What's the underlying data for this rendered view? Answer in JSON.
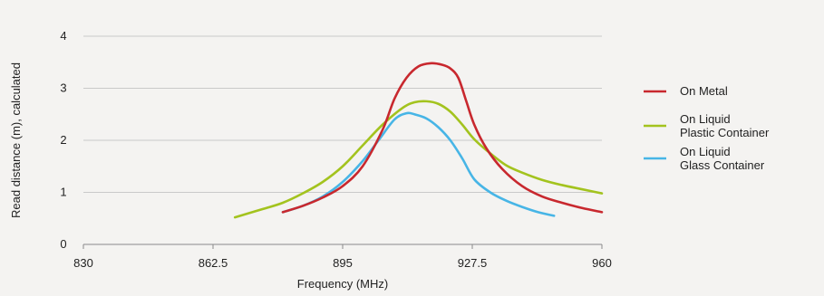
{
  "chart_data": {
    "type": "line",
    "title": "",
    "xlabel": "Frequency (MHz)",
    "ylabel": "Read distance (m), calculated",
    "xlim": [
      830,
      960
    ],
    "ylim": [
      0,
      4
    ],
    "xticks": [
      830,
      862.5,
      895,
      927.5,
      960
    ],
    "xtick_labels": [
      "830",
      "862.5",
      "895",
      "927.5",
      "960"
    ],
    "yticks": [
      0,
      1,
      2,
      3,
      4
    ],
    "ytick_labels": [
      "0",
      "1",
      "2",
      "3",
      "4"
    ],
    "grid": "horizontal",
    "legend_position": "right",
    "series": [
      {
        "name": "On Metal",
        "label_lines": [
          "On Metal"
        ],
        "color": "#c8282e",
        "points": [
          [
            880,
            0.62
          ],
          [
            885,
            0.74
          ],
          [
            890,
            0.9
          ],
          [
            895,
            1.12
          ],
          [
            900,
            1.5
          ],
          [
            905,
            2.2
          ],
          [
            908,
            2.8
          ],
          [
            911,
            3.2
          ],
          [
            914,
            3.42
          ],
          [
            917,
            3.48
          ],
          [
            920,
            3.45
          ],
          [
            922,
            3.38
          ],
          [
            924,
            3.2
          ],
          [
            926,
            2.75
          ],
          [
            928,
            2.3
          ],
          [
            931,
            1.85
          ],
          [
            935,
            1.45
          ],
          [
            940,
            1.12
          ],
          [
            945,
            0.92
          ],
          [
            950,
            0.8
          ],
          [
            955,
            0.7
          ],
          [
            960,
            0.62
          ]
        ]
      },
      {
        "name": "On Liquid Plastic Container",
        "label_lines": [
          "On Liquid",
          "Plastic Container"
        ],
        "color": "#a3c31e",
        "points": [
          [
            868,
            0.52
          ],
          [
            875,
            0.68
          ],
          [
            880,
            0.8
          ],
          [
            885,
            0.98
          ],
          [
            890,
            1.2
          ],
          [
            895,
            1.5
          ],
          [
            900,
            1.9
          ],
          [
            905,
            2.3
          ],
          [
            910,
            2.62
          ],
          [
            913,
            2.73
          ],
          [
            916,
            2.75
          ],
          [
            919,
            2.7
          ],
          [
            922,
            2.55
          ],
          [
            925,
            2.3
          ],
          [
            928,
            2.02
          ],
          [
            932,
            1.75
          ],
          [
            936,
            1.52
          ],
          [
            940,
            1.38
          ],
          [
            945,
            1.24
          ],
          [
            950,
            1.14
          ],
          [
            955,
            1.06
          ],
          [
            960,
            0.98
          ]
        ]
      },
      {
        "name": "On Liquid Glass Container",
        "label_lines": [
          "On Liquid",
          "Glass Container"
        ],
        "color": "#47b5e6",
        "points": [
          [
            880,
            0.62
          ],
          [
            885,
            0.74
          ],
          [
            890,
            0.92
          ],
          [
            895,
            1.2
          ],
          [
            900,
            1.6
          ],
          [
            904,
            2.0
          ],
          [
            908,
            2.4
          ],
          [
            911,
            2.52
          ],
          [
            913,
            2.5
          ],
          [
            916,
            2.42
          ],
          [
            919,
            2.25
          ],
          [
            922,
            2.0
          ],
          [
            925,
            1.65
          ],
          [
            928,
            1.25
          ],
          [
            932,
            1.0
          ],
          [
            936,
            0.84
          ],
          [
            940,
            0.72
          ],
          [
            944,
            0.62
          ],
          [
            948,
            0.55
          ]
        ]
      }
    ]
  }
}
